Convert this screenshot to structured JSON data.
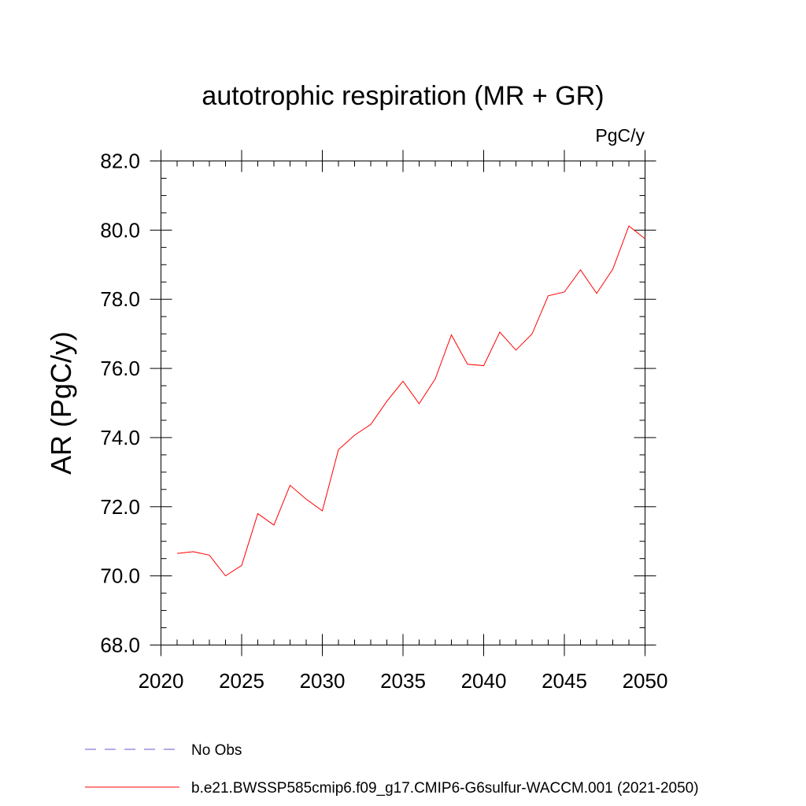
{
  "chart_data": {
    "type": "line",
    "title": "autotrophic respiration (MR + GR)",
    "units": "PgC/y",
    "ylabel": "AR  (PgC/y)",
    "xlabel": "",
    "xlim": [
      2020,
      2050
    ],
    "ylim": [
      68.0,
      82.0
    ],
    "x_ticks": [
      2020,
      2025,
      2030,
      2035,
      2040,
      2045,
      2050
    ],
    "x_tick_labels": [
      "2020",
      "2025",
      "2030",
      "2035",
      "2040",
      "2045",
      "2050"
    ],
    "y_ticks": [
      68,
      70,
      72,
      74,
      76,
      78,
      80,
      82
    ],
    "y_tick_labels": [
      "68.0",
      "70.0",
      "72.0",
      "74.0",
      "76.0",
      "78.0",
      "80.0",
      "82.0"
    ],
    "grid": false,
    "legend_position": "bottom",
    "series": [
      {
        "name": "No Obs",
        "color": "#6a5acd",
        "style": "dashed",
        "x": [],
        "values": []
      },
      {
        "name": "b.e21.BWSSP585cmip6.f09_g17.CMIP6-G6sulfur-WACCM.001 (2021-2050)",
        "color": "#ff0000",
        "style": "solid",
        "x": [
          2021,
          2022,
          2023,
          2024,
          2025,
          2026,
          2027,
          2028,
          2029,
          2030,
          2031,
          2032,
          2033,
          2034,
          2035,
          2036,
          2037,
          2038,
          2039,
          2040,
          2041,
          2042,
          2043,
          2044,
          2045,
          2046,
          2047,
          2048,
          2049,
          2050
        ],
        "values": [
          70.65,
          70.7,
          70.6,
          70.0,
          70.3,
          71.8,
          71.47,
          72.62,
          72.22,
          71.88,
          73.65,
          74.07,
          74.38,
          75.05,
          75.63,
          74.98,
          75.7,
          76.97,
          76.12,
          76.08,
          77.05,
          76.53,
          77.0,
          78.1,
          78.21,
          78.85,
          78.17,
          78.87,
          80.12,
          79.75
        ]
      }
    ]
  }
}
